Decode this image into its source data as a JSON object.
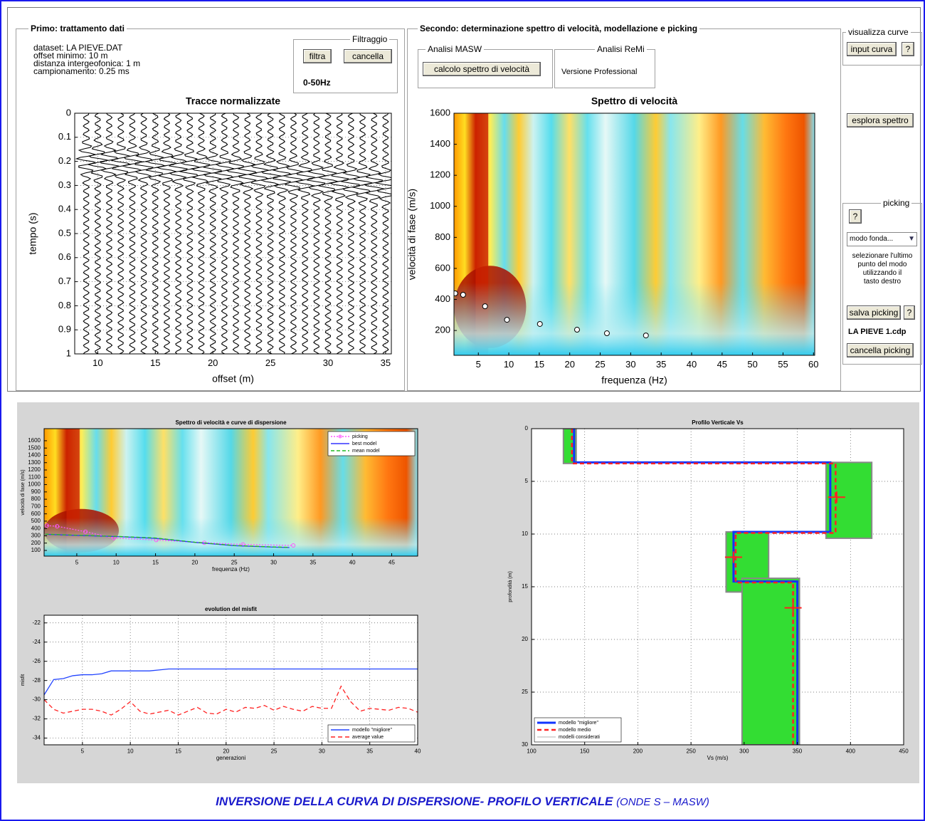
{
  "panel_left": {
    "legend": "Primo: trattamento dati",
    "info": [
      "dataset: LA PIEVE.DAT",
      "offset minimo: 10 m",
      "distanza intergeofonica: 1 m",
      "campionamento: 0.25 ms"
    ],
    "filter": {
      "legend": "Filtraggio",
      "buttons": [
        "filtra",
        "cancella"
      ],
      "range": "0-50Hz"
    }
  },
  "panel_middle": {
    "legend": "Secondo: determinazione spettro di velocità, modellazione e picking",
    "masw": {
      "legend": "Analisi MASW",
      "button": "calcolo spettro di velocità"
    },
    "remi": {
      "legend": "Analisi ReMi",
      "text": "Versione Professional"
    }
  },
  "panel_right": {
    "legend": "visualizza curve",
    "input_button": "input curva",
    "help": "?",
    "explore_button": "esplora spettro",
    "picking": {
      "legend": "picking",
      "help": "?",
      "select": "modo fonda...",
      "instructions": [
        "selezionare l'ultimo",
        "punto del modo",
        "utilizzando il",
        "tasto destro"
      ],
      "save_button": "salva picking",
      "save_help": "?",
      "file": "LA PIEVE 1.cdp",
      "clear_button": "cancella picking"
    }
  },
  "charts": [
    {
      "type": "traces",
      "title": "Tracce normalizzate",
      "xlabel": "offset (m)",
      "ylabel": "tempo (s)",
      "xlim": [
        8,
        35.5
      ],
      "ylim": [
        0,
        1
      ],
      "yreverse": true,
      "grid": true,
      "traces": true,
      "xticks": [
        10,
        15,
        20,
        25,
        30,
        35
      ],
      "yticks": [
        0,
        0.1,
        0.2,
        0.3,
        0.4,
        0.5,
        0.6,
        0.7,
        0.8,
        0.9,
        1
      ],
      "series": []
    },
    {
      "type": "spectrum",
      "title": "Spettro di velocità",
      "xlabel": "frequenza (Hz)",
      "ylabel": "velocità di fase (m/s)",
      "xlim": [
        1,
        60.2
      ],
      "ylim": [
        40,
        1600
      ],
      "grid": false,
      "heatmap": true,
      "xticks": [
        5,
        10,
        15,
        20,
        25,
        30,
        35,
        40,
        45,
        50,
        55,
        60
      ],
      "yticks": [
        200,
        400,
        600,
        800,
        1000,
        1200,
        1400,
        1600
      ],
      "series": [
        {
          "color": "#ffffff",
          "marker": "circle",
          "line": false,
          "x": [
            1.2,
            2.5,
            6.1,
            9.7,
            15.1,
            21.2,
            26.1,
            32.5
          ],
          "y": [
            439,
            430,
            356,
            269,
            242,
            205,
            182,
            168
          ]
        }
      ]
    },
    {
      "type": "spectrum",
      "title": "Spettro di velocità e curve di dispersione",
      "xlabel": "frequenza (Hz)",
      "ylabel": "velocità di fase (m/s)",
      "xlim": [
        0.85,
        48.3
      ],
      "ylim": [
        22,
        1765
      ],
      "grid": false,
      "heatmap": true,
      "legend": "upper right",
      "xticks": [
        5,
        10,
        15,
        20,
        25,
        30,
        35,
        40,
        45
      ],
      "yticks": [
        100,
        200,
        300,
        400,
        500,
        600,
        700,
        800,
        900,
        1000,
        1100,
        1200,
        1300,
        1400,
        1500,
        1600
      ],
      "series": [
        {
          "name": "picking",
          "color": "#ff55ff",
          "marker": "circle",
          "line": true,
          "dash": "2,2",
          "x": [
            1.2,
            2.5,
            6.1,
            9.7,
            15.1,
            21.2,
            26.1,
            32.5
          ],
          "y": [
            439,
            430,
            356,
            269,
            242,
            205,
            182,
            168
          ]
        },
        {
          "name": "best model",
          "color": "#3333ff",
          "line": true,
          "x": [
            1,
            5,
            10,
            15,
            20,
            25,
            30,
            32
          ],
          "y": [
            320,
            305,
            290,
            265,
            210,
            165,
            145,
            140
          ]
        },
        {
          "name": "mean model",
          "color": "#22bb22",
          "line": true,
          "dash": "5,3",
          "x": [
            1,
            5,
            10,
            15,
            20,
            25,
            30,
            32
          ],
          "y": [
            322,
            308,
            292,
            270,
            212,
            168,
            147,
            142
          ]
        }
      ]
    },
    {
      "type": "line",
      "title": "evolution del misfit",
      "xlabel": "generazioni",
      "ylabel": "misfit",
      "xlim": [
        1,
        40
      ],
      "ylim": [
        -34.7,
        -21.2
      ],
      "grid": true,
      "legend": "lower right",
      "xticks": [
        5,
        10,
        15,
        20,
        25,
        30,
        35,
        40
      ],
      "yticks": [
        -22,
        -24,
        -26,
        -28,
        -30,
        -32,
        -34
      ],
      "series": [
        {
          "name": "modello \"migliore\"",
          "color": "#2244ff",
          "line": true,
          "x": [
            1,
            2,
            3,
            4,
            5,
            6,
            7,
            8,
            9,
            10,
            11,
            12,
            13,
            14,
            15,
            16,
            17,
            18,
            19,
            20,
            21,
            22,
            23,
            24,
            25,
            26,
            27,
            28,
            29,
            30,
            31,
            32,
            33,
            34,
            35,
            36,
            37,
            38,
            39,
            40
          ],
          "y": [
            -29.5,
            -27.9,
            -27.8,
            -27.5,
            -27.4,
            -27.4,
            -27.3,
            -27.0,
            -27.0,
            -27.0,
            -27.0,
            -27.0,
            -26.9,
            -26.8,
            -26.8,
            -26.8,
            -26.8,
            -26.8,
            -26.8,
            -26.8,
            -26.8,
            -26.8,
            -26.8,
            -26.8,
            -26.8,
            -26.8,
            -26.8,
            -26.8,
            -26.8,
            -26.8,
            -26.8,
            -26.8,
            -26.8,
            -26.8,
            -26.8,
            -26.8,
            -26.8,
            -26.8,
            -26.8,
            -26.8
          ]
        },
        {
          "name": "average value",
          "color": "#ff2222",
          "line": true,
          "dash": "6,4",
          "x": [
            1,
            2,
            3,
            4,
            5,
            6,
            7,
            8,
            9,
            10,
            11,
            12,
            13,
            14,
            15,
            16,
            17,
            18,
            19,
            20,
            21,
            22,
            23,
            24,
            25,
            26,
            27,
            28,
            29,
            30,
            31,
            32,
            33,
            34,
            35,
            36,
            37,
            38,
            39,
            40
          ],
          "y": [
            -30.0,
            -31.0,
            -31.4,
            -31.2,
            -31.0,
            -31.0,
            -31.2,
            -31.6,
            -31.0,
            -30.2,
            -31.2,
            -31.5,
            -31.3,
            -31.1,
            -31.6,
            -31.2,
            -30.8,
            -31.4,
            -31.5,
            -31.0,
            -31.3,
            -30.8,
            -30.9,
            -30.6,
            -31.1,
            -30.7,
            -31.0,
            -31.2,
            -30.7,
            -30.9,
            -30.9,
            -28.6,
            -30.2,
            -31.2,
            -30.9,
            -31.0,
            -31.1,
            -30.8,
            -30.9,
            -31.3
          ]
        }
      ]
    },
    {
      "type": "profile",
      "title": "Profilo Verticale Vs",
      "xlabel": "Vs (m/s)",
      "ylabel": "profondità (m)",
      "xlim": [
        100,
        450
      ],
      "ylim": [
        0,
        30
      ],
      "yreverse": true,
      "grid": true,
      "legend": "lower left",
      "xticks": [
        100,
        150,
        200,
        250,
        300,
        350,
        400,
        450
      ],
      "yticks": [
        0,
        5,
        10,
        15,
        20,
        25,
        30
      ],
      "bands": {
        "name": "modelli considerati",
        "color": "#33dd33",
        "vs": [
          [
            130,
            142
          ],
          [
            377,
            420
          ],
          [
            283,
            323
          ],
          [
            298,
            352
          ]
        ],
        "depth": [
          [
            0,
            3.3
          ],
          [
            3.2,
            10.4
          ],
          [
            9.8,
            15.5
          ],
          [
            14.2,
            30
          ]
        ]
      },
      "series": [
        {
          "name": "modello \"migliore\"",
          "color": "#1133ff",
          "line": true,
          "width": 3,
          "x": [
            140,
            140,
            381,
            381,
            290,
            290,
            350,
            350
          ],
          "y": [
            0,
            3.2,
            3.2,
            9.8,
            9.8,
            14.5,
            14.5,
            30
          ]
        },
        {
          "name": "modello medio",
          "color": "#ff2222",
          "line": true,
          "dash": "6,4",
          "width": 2.5,
          "x": [
            138,
            138,
            386,
            386,
            292,
            292,
            346,
            346
          ],
          "y": [
            0,
            3.3,
            3.3,
            9.9,
            9.9,
            14.6,
            14.6,
            30
          ]
        },
        {
          "color": "#ff2222",
          "marker": "plus",
          "line": false,
          "x": [
            387,
            290,
            346
          ],
          "y": [
            6.5,
            12.2,
            17
          ]
        }
      ]
    }
  ],
  "caption": {
    "main": "INVERSIONE DELLA CURVA DI DISPERSIONE- PROFILO VERTICALE",
    "sub": "(ONDE S – MASW)"
  }
}
